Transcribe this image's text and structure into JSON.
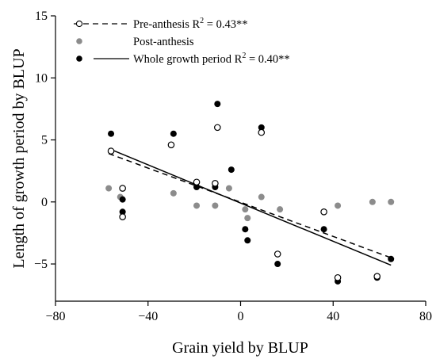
{
  "chart_data": {
    "type": "scatter",
    "xlabel": "Grain yield by BLUP",
    "ylabel": "Length of  growth period by BLUP",
    "xlim": [
      -80,
      80
    ],
    "ylim": [
      -8,
      15
    ],
    "xticks": [
      -80,
      -40,
      0,
      40,
      80
    ],
    "yticks": [
      -5,
      0,
      5,
      10,
      15
    ],
    "xtick_labels": [
      "−80",
      "−40",
      "0",
      "40",
      "80"
    ],
    "ytick_labels": [
      "−5",
      "0",
      "5",
      "10",
      "15"
    ],
    "grid": false,
    "legend_position": "top-left",
    "series": [
      {
        "name": "Pre-anthesis",
        "marker": "open-circle",
        "color": "#000000",
        "x": [
          -56,
          -51,
          -51,
          -30,
          -19,
          -11,
          -10,
          9,
          16,
          36,
          42,
          59
        ],
        "y": [
          4.1,
          1.1,
          -1.2,
          4.6,
          1.6,
          1.5,
          6.0,
          5.6,
          -4.2,
          -0.8,
          -6.1,
          -6.0
        ]
      },
      {
        "name": "Post-anthesis",
        "marker": "filled-circle",
        "color": "#8c8c8c",
        "x": [
          -57,
          -52,
          -29,
          -19,
          -11,
          -5,
          2,
          3,
          9,
          17,
          42,
          57,
          65
        ],
        "y": [
          1.1,
          0.4,
          0.7,
          -0.3,
          -0.3,
          1.1,
          -0.6,
          -1.3,
          0.4,
          -0.6,
          -0.3,
          0.0,
          0.0
        ]
      },
      {
        "name": "Whole growth period",
        "marker": "filled-circle",
        "color": "#000000",
        "x": [
          -56,
          -51,
          -51,
          -29,
          -19,
          -11,
          -10,
          -4,
          2,
          3,
          9,
          16,
          36,
          42,
          59,
          65
        ],
        "y": [
          5.5,
          0.2,
          -0.8,
          5.5,
          1.2,
          1.2,
          7.9,
          2.6,
          -2.2,
          -3.1,
          6.0,
          -5.0,
          -2.2,
          -6.4,
          -6.1,
          -4.6
        ]
      }
    ],
    "fit_lines": [
      {
        "series": "Pre-anthesis",
        "style": "dashed",
        "x": [
          -57,
          65
        ],
        "y": [
          3.9,
          -4.5
        ]
      },
      {
        "series": "Whole growth period",
        "style": "solid",
        "x": [
          -57,
          65
        ],
        "y": [
          4.3,
          -5.1
        ]
      }
    ],
    "legend": [
      {
        "key": "pre",
        "style": "dashed-line",
        "marker": "open-circle",
        "text": "Pre-anthesis  R",
        "sup": "2",
        "tail": " = 0.43**"
      },
      {
        "key": "post",
        "style": "none",
        "marker": "gray-circle",
        "text": "Post-anthesis",
        "sup": "",
        "tail": ""
      },
      {
        "key": "whole",
        "style": "solid-line",
        "marker": "filled-circle",
        "text": "Whole growth period  R",
        "sup": "2",
        "tail": " = 0.40**"
      }
    ]
  }
}
